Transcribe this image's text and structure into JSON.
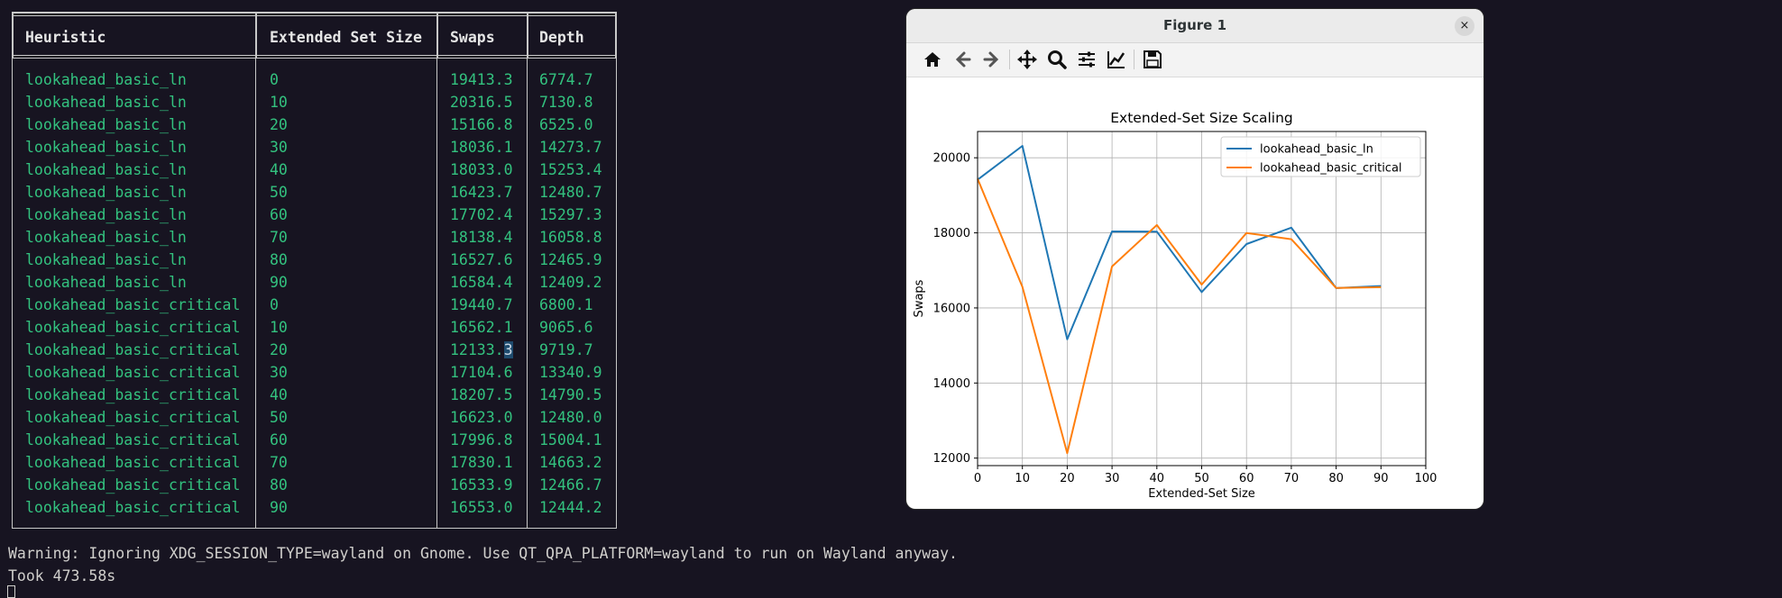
{
  "terminal": {
    "headers": [
      "Heuristic",
      "Extended Set Size",
      "Swaps",
      "Depth"
    ],
    "rows": [
      [
        "lookahead_basic_ln",
        "0",
        "19413.3",
        "6774.7"
      ],
      [
        "lookahead_basic_ln",
        "10",
        "20316.5",
        "7130.8"
      ],
      [
        "lookahead_basic_ln",
        "20",
        "15166.8",
        "6525.0"
      ],
      [
        "lookahead_basic_ln",
        "30",
        "18036.1",
        "14273.7"
      ],
      [
        "lookahead_basic_ln",
        "40",
        "18033.0",
        "15253.4"
      ],
      [
        "lookahead_basic_ln",
        "50",
        "16423.7",
        "12480.7"
      ],
      [
        "lookahead_basic_ln",
        "60",
        "17702.4",
        "15297.3"
      ],
      [
        "lookahead_basic_ln",
        "70",
        "18138.4",
        "16058.8"
      ],
      [
        "lookahead_basic_ln",
        "80",
        "16527.6",
        "12465.9"
      ],
      [
        "lookahead_basic_ln",
        "90",
        "16584.4",
        "12409.2"
      ],
      [
        "lookahead_basic_critical",
        "0",
        "19440.7",
        "6800.1"
      ],
      [
        "lookahead_basic_critical",
        "10",
        "16562.1",
        "9065.6"
      ],
      [
        "lookahead_basic_critical",
        "20",
        "12133.3",
        "9719.7"
      ],
      [
        "lookahead_basic_critical",
        "30",
        "17104.6",
        "13340.9"
      ],
      [
        "lookahead_basic_critical",
        "40",
        "18207.5",
        "14790.5"
      ],
      [
        "lookahead_basic_critical",
        "50",
        "16623.0",
        "12480.0"
      ],
      [
        "lookahead_basic_critical",
        "60",
        "17996.8",
        "15004.1"
      ],
      [
        "lookahead_basic_critical",
        "70",
        "17830.1",
        "14663.2"
      ],
      [
        "lookahead_basic_critical",
        "80",
        "16533.9",
        "12466.7"
      ],
      [
        "lookahead_basic_critical",
        "90",
        "16553.0",
        "12444.2"
      ]
    ],
    "warning": "Warning: Ignoring XDG_SESSION_TYPE=wayland on Gnome. Use QT_QPA_PLATFORM=wayland to run on Wayland anyway.",
    "took": "Took 473.58s"
  },
  "window": {
    "title": "Figure 1",
    "close_label": "×",
    "toolbar": [
      "home-icon",
      "back-icon",
      "forward-icon",
      "pan-icon",
      "zoom-icon",
      "subplots-icon",
      "customize-icon",
      "save-icon"
    ]
  },
  "chart_data": {
    "type": "line",
    "title": "Extended-Set Size Scaling",
    "xlabel": "Extended-Set Size",
    "ylabel": "Swaps",
    "x": [
      0,
      10,
      20,
      30,
      40,
      50,
      60,
      70,
      80,
      90
    ],
    "xlim": [
      0,
      100
    ],
    "ylim": [
      11800,
      20700
    ],
    "xticks": [
      "0",
      "10",
      "20",
      "30",
      "40",
      "50",
      "60",
      "70",
      "80",
      "90",
      "100"
    ],
    "yticks": [
      "12000",
      "14000",
      "16000",
      "18000",
      "20000"
    ],
    "grid": true,
    "legend_position": "upper right",
    "series": [
      {
        "name": "lookahead_basic_ln",
        "color": "#1f77b4",
        "values": [
          19413.3,
          20316.5,
          15166.8,
          18036.1,
          18033.0,
          16423.7,
          17702.4,
          18138.4,
          16527.6,
          16584.4
        ]
      },
      {
        "name": "lookahead_basic_critical",
        "color": "#ff7f0e",
        "values": [
          19440.7,
          16562.1,
          12133.3,
          17104.6,
          18207.5,
          16623.0,
          17996.8,
          17830.1,
          16533.9,
          16553.0
        ]
      }
    ]
  }
}
